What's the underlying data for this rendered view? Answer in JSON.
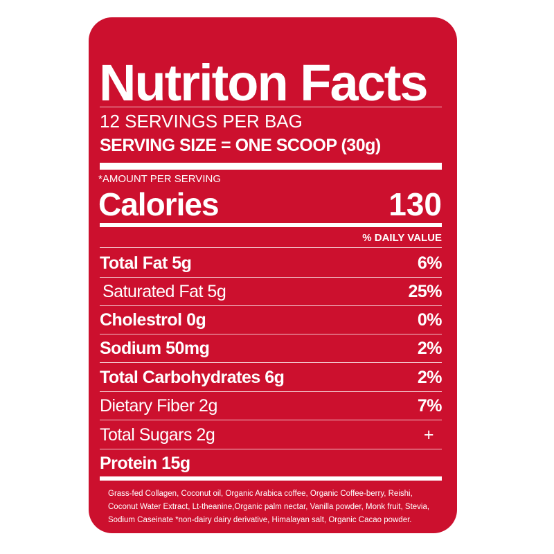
{
  "title": "Nutriton Facts",
  "servings_per_bag": "12 SERVINGS PER BAG",
  "serving_size": "SERVING SIZE = ONE SCOOP (30g)",
  "amount_per_serving": "*AMOUNT PER SERVING",
  "calories_label": "Calories",
  "calories_value": "130",
  "daily_value_header": "% DAILY VALUE",
  "nutrients": [
    {
      "label": "Total Fat  5g",
      "dv": "6%",
      "bold": true,
      "indent": false
    },
    {
      "label": "Saturated Fat  5g",
      "dv": "25%",
      "bold": false,
      "indent": true
    },
    {
      "label": "Cholestrol  0g",
      "dv": "0%",
      "bold": true,
      "indent": false
    },
    {
      "label": "Sodium  50mg",
      "dv": "2%",
      "bold": true,
      "indent": false
    },
    {
      "label": "Total Carbohydrates  6g",
      "dv": "2%",
      "bold": true,
      "indent": false
    },
    {
      "label": "Dietary Fiber  2g",
      "dv": "7%",
      "bold": false,
      "indent": false
    },
    {
      "label": "Total Sugars  2g",
      "dv": "+",
      "bold": false,
      "indent": false
    },
    {
      "label": "Protein  15g",
      "dv": "",
      "bold": true,
      "indent": false
    }
  ],
  "ingredients": [
    "Grass-fed Collagen, Coconut oil, Organic Arabica coffee, Organic Coffee-berry, Reishi,",
    "Coconut Water Extract, Lt-theanine,Organic palm nectar, Vanilla powder, Monk fruit, Stevia,",
    "Sodium Caseinate *non-dairy dairy derivative, Himalayan salt, Organic Cacao powder."
  ],
  "colors": {
    "background": "#cc102e",
    "text": "#ffffff"
  }
}
